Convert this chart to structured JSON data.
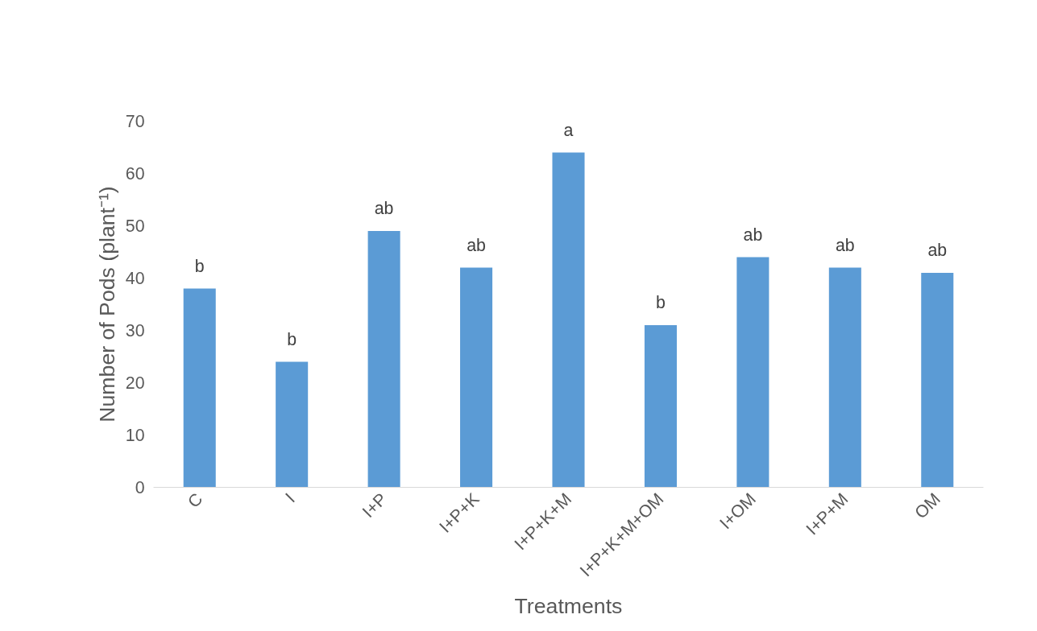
{
  "chart_data": {
    "type": "bar",
    "xlabel": "Treatments",
    "ylabel": "Number of Pods (plant⁻¹)",
    "categories": [
      "C",
      "I",
      "I+P",
      "I+P+K",
      "I+P+K+M",
      "I+P+K+M+OM",
      "I+OM",
      "I+P+M",
      "OM"
    ],
    "series": [
      {
        "color": "#5b9bd5",
        "values": [
          38,
          24,
          49,
          42,
          64,
          31,
          44,
          42,
          41
        ]
      }
    ],
    "ylim": [
      0,
      70
    ],
    "yticks": [
      0,
      10,
      20,
      30,
      40,
      50,
      60,
      70
    ],
    "grid": false,
    "annotations": [
      {
        "text": "b",
        "x": "C",
        "y": 38
      },
      {
        "text": "b",
        "x": "I",
        "y": 24
      },
      {
        "text": "ab",
        "x": "I+P",
        "y": 49
      },
      {
        "text": "ab",
        "x": "I+P+K",
        "y": 42
      },
      {
        "text": "a",
        "x": "I+P+K+M",
        "y": 64
      },
      {
        "text": "b",
        "x": "I+P+K+M+OM",
        "y": 31
      },
      {
        "text": "ab",
        "x": "I+OM",
        "y": 44
      },
      {
        "text": "ab",
        "x": "I+P+M",
        "y": 42
      },
      {
        "text": "ab",
        "x": "OM",
        "y": 41
      }
    ]
  }
}
